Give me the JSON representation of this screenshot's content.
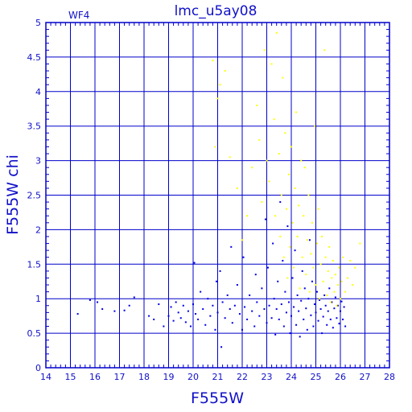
{
  "chart_data": {
    "type": "scatter",
    "title": "lmc_u5ay08",
    "corner_label": "WF4",
    "xlabel": "F555W",
    "ylabel": "F555W chi",
    "xlim": [
      14,
      28
    ],
    "ylim": [
      0,
      5
    ],
    "x_ticks": [
      "14",
      "15",
      "16",
      "17",
      "18",
      "19",
      "20",
      "21",
      "22",
      "23",
      "24",
      "25",
      "26",
      "27",
      "28"
    ],
    "y_ticks": [
      "0",
      "0.5",
      "1",
      "1.5",
      "2",
      "2.5",
      "3",
      "3.5",
      "4",
      "4.5",
      "5"
    ],
    "grid": true,
    "colors": {
      "axis": "#0000cc",
      "grid": "#0000cc",
      "text": "#1010c8",
      "series_main": "#0000e6",
      "series_flagged": "#ffff00"
    },
    "series": [
      {
        "values": [
          [
            15.3,
            0.78
          ],
          [
            15.8,
            0.98
          ],
          [
            16.1,
            0.95
          ],
          [
            16.3,
            0.85
          ],
          [
            16.8,
            0.82
          ],
          [
            17.2,
            0.83
          ],
          [
            17.4,
            0.9
          ],
          [
            17.6,
            1.02
          ],
          [
            18.2,
            0.75
          ],
          [
            18.4,
            0.7
          ],
          [
            18.6,
            0.92
          ],
          [
            18.8,
            0.6
          ],
          [
            19.0,
            0.75
          ],
          [
            19.1,
            0.88
          ],
          [
            19.2,
            0.68
          ],
          [
            19.3,
            0.95
          ],
          [
            19.4,
            0.8
          ],
          [
            19.5,
            0.72
          ],
          [
            19.6,
            0.9
          ],
          [
            19.7,
            0.66
          ],
          [
            19.8,
            0.82
          ],
          [
            19.9,
            0.6
          ],
          [
            20.0,
            0.92
          ],
          [
            20.05,
            1.52
          ],
          [
            20.1,
            0.78
          ],
          [
            20.2,
            0.7
          ],
          [
            20.3,
            1.1
          ],
          [
            20.4,
            0.85
          ],
          [
            20.5,
            0.62
          ],
          [
            20.6,
            1.0
          ],
          [
            20.7,
            0.75
          ],
          [
            20.8,
            0.9
          ],
          [
            20.9,
            0.55
          ],
          [
            20.95,
            1.25
          ],
          [
            21.0,
            0.8
          ],
          [
            21.1,
            1.4
          ],
          [
            21.15,
            0.3
          ],
          [
            21.2,
            0.95
          ],
          [
            21.3,
            0.72
          ],
          [
            21.4,
            1.05
          ],
          [
            21.5,
            0.85
          ],
          [
            21.55,
            1.75
          ],
          [
            21.6,
            0.65
          ],
          [
            21.7,
            0.9
          ],
          [
            21.8,
            1.2
          ],
          [
            21.9,
            0.78
          ],
          [
            22.0,
            0.55
          ],
          [
            22.05,
            1.6
          ],
          [
            22.1,
            0.88
          ],
          [
            22.2,
            0.7
          ],
          [
            22.3,
            1.05
          ],
          [
            22.4,
            0.82
          ],
          [
            22.5,
            0.6
          ],
          [
            22.55,
            1.35
          ],
          [
            22.6,
            0.95
          ],
          [
            22.7,
            0.75
          ],
          [
            22.8,
            1.15
          ],
          [
            22.9,
            0.85
          ],
          [
            22.95,
            2.15
          ],
          [
            23.0,
            0.65
          ],
          [
            23.05,
            1.45
          ],
          [
            23.1,
            0.9
          ],
          [
            23.2,
            0.72
          ],
          [
            23.25,
            1.8
          ],
          [
            23.3,
            1.0
          ],
          [
            23.35,
            0.48
          ],
          [
            23.4,
            0.85
          ],
          [
            23.45,
            1.25
          ],
          [
            23.5,
            0.7
          ],
          [
            23.55,
            2.4
          ],
          [
            23.6,
            0.92
          ],
          [
            23.65,
            1.55
          ],
          [
            23.7,
            0.6
          ],
          [
            23.75,
            1.1
          ],
          [
            23.8,
            0.8
          ],
          [
            23.85,
            2.05
          ],
          [
            23.9,
            0.95
          ],
          [
            23.95,
            0.5
          ],
          [
            24.0,
            0.75
          ],
          [
            24.05,
            1.3
          ],
          [
            24.1,
            0.88
          ],
          [
            24.15,
            1.7
          ],
          [
            24.2,
            0.62
          ],
          [
            24.25,
            1.05
          ],
          [
            24.3,
            0.82
          ],
          [
            24.35,
            0.45
          ],
          [
            24.4,
            0.97
          ],
          [
            24.45,
            1.4
          ],
          [
            24.5,
            0.7
          ],
          [
            24.55,
            1.15
          ],
          [
            24.6,
            0.86
          ],
          [
            24.65,
            0.55
          ],
          [
            24.7,
            1.0
          ],
          [
            24.75,
            1.85
          ],
          [
            24.8,
            0.76
          ],
          [
            24.85,
            1.25
          ],
          [
            24.9,
            0.6
          ],
          [
            24.95,
            0.92
          ],
          [
            25.0,
            0.8
          ],
          [
            25.05,
            1.1
          ],
          [
            25.1,
            0.68
          ],
          [
            25.15,
            0.98
          ],
          [
            25.2,
            0.85
          ],
          [
            25.25,
            0.5
          ],
          [
            25.3,
            0.74
          ],
          [
            25.35,
            1.05
          ],
          [
            25.4,
            0.9
          ],
          [
            25.45,
            0.62
          ],
          [
            25.5,
            0.82
          ],
          [
            25.55,
            1.15
          ],
          [
            25.6,
            0.7
          ],
          [
            25.65,
            0.95
          ],
          [
            25.7,
            0.58
          ],
          [
            25.75,
            0.86
          ],
          [
            25.8,
            1.02
          ],
          [
            25.85,
            0.72
          ],
          [
            25.9,
            0.9
          ],
          [
            25.95,
            0.64
          ],
          [
            26.0,
            0.82
          ],
          [
            26.05,
            0.96
          ],
          [
            26.1,
            0.7
          ],
          [
            26.15,
            0.88
          ],
          [
            26.2,
            0.6
          ]
        ]
      },
      {
        "values": [
          [
            20.8,
            4.45
          ],
          [
            20.9,
            3.2
          ],
          [
            21.0,
            3.9
          ],
          [
            21.1,
            4.1
          ],
          [
            21.3,
            4.3
          ],
          [
            21.5,
            3.05
          ],
          [
            21.8,
            2.6
          ],
          [
            22.0,
            1.85
          ],
          [
            22.2,
            2.2
          ],
          [
            22.4,
            2.9
          ],
          [
            22.6,
            3.8
          ],
          [
            22.7,
            3.3
          ],
          [
            22.8,
            2.4
          ],
          [
            22.9,
            4.6
          ],
          [
            23.0,
            3.0
          ],
          [
            23.1,
            2.7
          ],
          [
            23.2,
            4.4
          ],
          [
            23.3,
            3.6
          ],
          [
            23.35,
            2.2
          ],
          [
            23.4,
            4.85
          ],
          [
            23.5,
            3.1
          ],
          [
            23.55,
            1.9
          ],
          [
            23.6,
            2.5
          ],
          [
            23.65,
            4.2
          ],
          [
            23.7,
            1.6
          ],
          [
            23.75,
            3.4
          ],
          [
            23.8,
            2.3
          ],
          [
            23.85,
            1.3
          ],
          [
            23.9,
            2.8
          ],
          [
            23.95,
            1.75
          ],
          [
            24.0,
            3.2
          ],
          [
            24.05,
            2.1
          ],
          [
            24.1,
            1.45
          ],
          [
            24.15,
            2.6
          ],
          [
            24.2,
            3.7
          ],
          [
            24.25,
            1.9
          ],
          [
            24.3,
            2.35
          ],
          [
            24.35,
            1.15
          ],
          [
            24.4,
            3.0
          ],
          [
            24.45,
            1.6
          ],
          [
            24.5,
            2.2
          ],
          [
            24.55,
            2.9
          ],
          [
            24.6,
            1.35
          ],
          [
            24.65,
            1.85
          ],
          [
            24.7,
            2.5
          ],
          [
            24.75,
            1.1
          ],
          [
            24.8,
            1.65
          ],
          [
            24.85,
            2.1
          ],
          [
            24.9,
            1.45
          ],
          [
            24.95,
            3.5
          ],
          [
            25.0,
            1.2
          ],
          [
            25.05,
            1.8
          ],
          [
            25.1,
            2.3
          ],
          [
            25.15,
            1.0
          ],
          [
            25.2,
            1.5
          ],
          [
            25.25,
            1.9
          ],
          [
            25.3,
            1.25
          ],
          [
            25.35,
            4.6
          ],
          [
            25.4,
            1.6
          ],
          [
            25.45,
            1.05
          ],
          [
            25.5,
            1.4
          ],
          [
            25.55,
            1.75
          ],
          [
            25.6,
            0.95
          ],
          [
            25.65,
            1.3
          ],
          [
            25.7,
            1.55
          ],
          [
            25.75,
            1.1
          ],
          [
            25.8,
            1.35
          ],
          [
            25.85,
            0.9
          ],
          [
            25.9,
            1.2
          ],
          [
            25.95,
            1.45
          ],
          [
            26.0,
            1.0
          ],
          [
            26.05,
            1.25
          ],
          [
            26.1,
            1.6
          ],
          [
            26.2,
            1.1
          ],
          [
            26.3,
            1.3
          ],
          [
            26.4,
            1.55
          ],
          [
            26.5,
            1.2
          ],
          [
            26.6,
            1.45
          ],
          [
            26.8,
            1.8
          ]
        ]
      }
    ]
  }
}
